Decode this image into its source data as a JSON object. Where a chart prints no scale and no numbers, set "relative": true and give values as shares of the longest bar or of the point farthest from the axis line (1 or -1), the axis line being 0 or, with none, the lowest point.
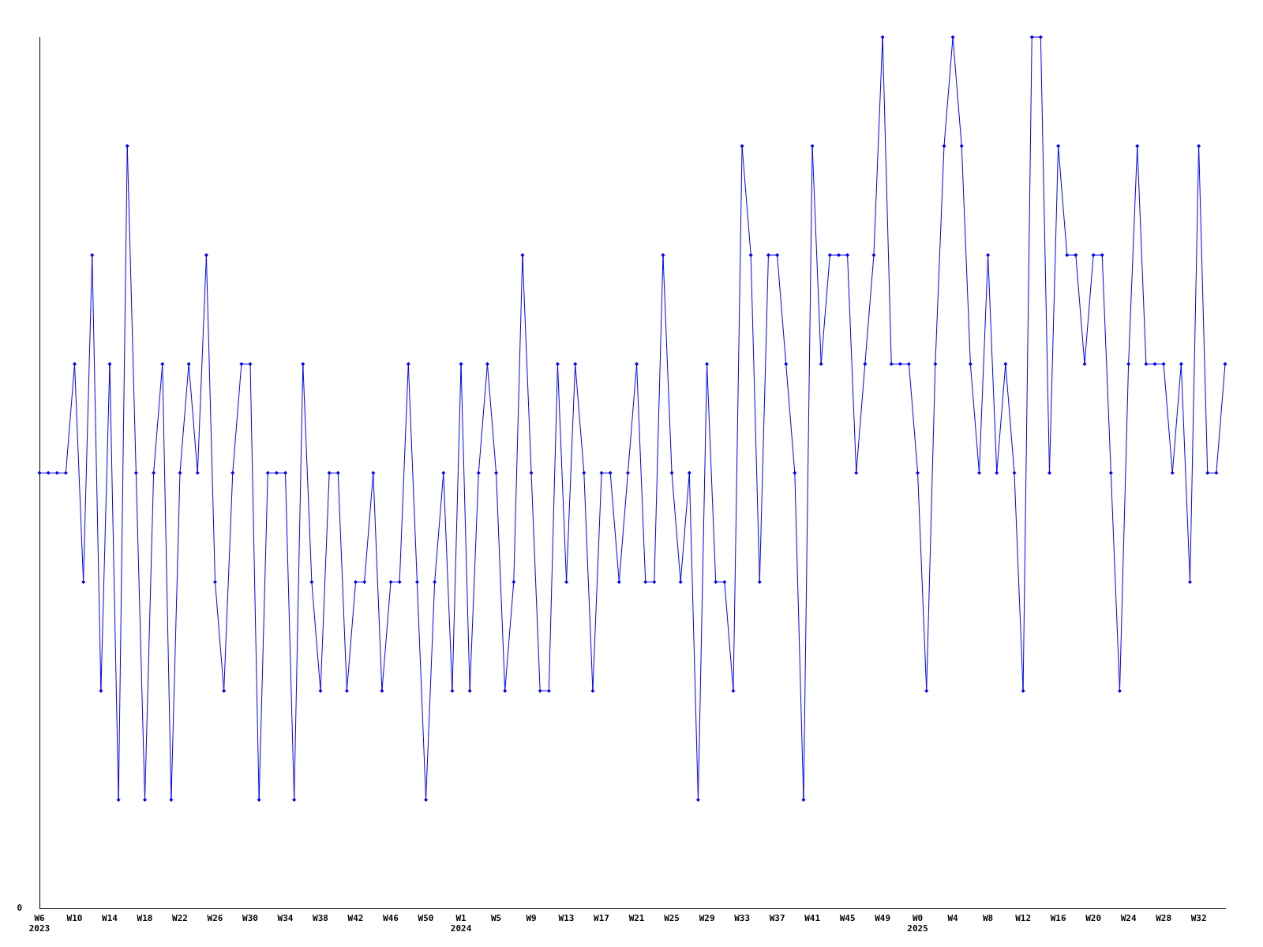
{
  "chart_data": {
    "type": "line",
    "relative": true,
    "marker": "diamond",
    "line_style": "solid",
    "grid": false,
    "legend": false,
    "annotations": [
      "0"
    ],
    "categories": [
      "W6\n2023",
      null,
      null,
      null,
      "W10",
      null,
      null,
      null,
      "W14",
      null,
      null,
      null,
      "W18",
      null,
      null,
      null,
      "W22",
      null,
      null,
      null,
      "W26",
      null,
      null,
      null,
      "W30",
      null,
      null,
      null,
      "W34",
      null,
      null,
      null,
      "W38",
      null,
      null,
      null,
      "W42",
      null,
      null,
      null,
      "W46",
      null,
      null,
      null,
      "W50",
      null,
      null,
      null,
      "W1\n2024",
      null,
      null,
      null,
      "W5",
      null,
      null,
      null,
      "W9",
      null,
      null,
      null,
      "W13",
      null,
      null,
      null,
      "W17",
      null,
      null,
      null,
      "W21",
      null,
      null,
      null,
      "W25",
      null,
      null,
      null,
      "W29",
      null,
      null,
      null,
      "W33",
      null,
      null,
      null,
      "W37",
      null,
      null,
      null,
      "W41",
      null,
      null,
      null,
      "W45",
      null,
      null,
      null,
      "W49",
      null,
      null,
      null,
      "W0\n2025",
      null,
      null,
      null,
      "W4",
      null,
      null,
      null,
      "W8",
      null,
      null,
      null,
      "W12",
      null,
      null,
      null,
      "W16",
      null,
      null,
      null,
      "W20",
      null,
      null,
      null,
      "W24",
      null,
      null,
      null,
      "W28",
      null,
      null,
      null,
      "W32",
      null,
      null,
      null
    ],
    "series": [
      {
        "color": "#0000ff",
        "values": [
          0.5,
          0.5,
          0.5,
          0.5,
          0.625,
          0.375,
          0.75,
          0.25,
          0.625,
          0.125,
          0.875,
          0.5,
          0.125,
          0.5,
          0.625,
          0.125,
          0.5,
          0.625,
          0.5,
          0.75,
          0.375,
          0.25,
          0.5,
          0.625,
          0.625,
          0.125,
          0.5,
          0.5,
          0.5,
          0.125,
          0.625,
          0.375,
          0.25,
          0.5,
          0.5,
          0.25,
          0.375,
          0.375,
          0.5,
          0.25,
          0.375,
          0.375,
          0.625,
          0.375,
          0.125,
          0.375,
          0.5,
          0.25,
          0.625,
          0.25,
          0.5,
          0.625,
          0.5,
          0.25,
          0.375,
          0.75,
          0.5,
          0.25,
          0.25,
          0.625,
          0.375,
          0.625,
          0.5,
          0.25,
          0.5,
          0.5,
          0.375,
          0.5,
          0.625,
          0.375,
          0.375,
          0.75,
          0.5,
          0.375,
          0.5,
          0.125,
          0.625,
          0.375,
          0.375,
          0.25,
          0.875,
          0.75,
          0.375,
          0.75,
          0.75,
          0.625,
          0.5,
          0.125,
          0.875,
          0.625,
          0.75,
          0.75,
          0.75,
          0.5,
          0.625,
          0.75,
          1,
          0.625,
          0.625,
          0.625,
          0.5,
          0.25,
          0.625,
          0.875,
          1,
          0.875,
          0.625,
          0.5,
          0.75,
          0.5,
          0.625,
          0.5,
          0.25,
          1,
          1,
          0.5,
          0.875,
          0.75,
          0.75,
          0.625,
          0.75,
          0.75,
          0.5,
          0.25,
          0.625,
          0.875,
          0.625,
          0.625,
          0.625,
          0.5,
          0.625,
          0.375,
          0.875,
          0.5,
          0.5,
          0.625
        ]
      }
    ]
  }
}
